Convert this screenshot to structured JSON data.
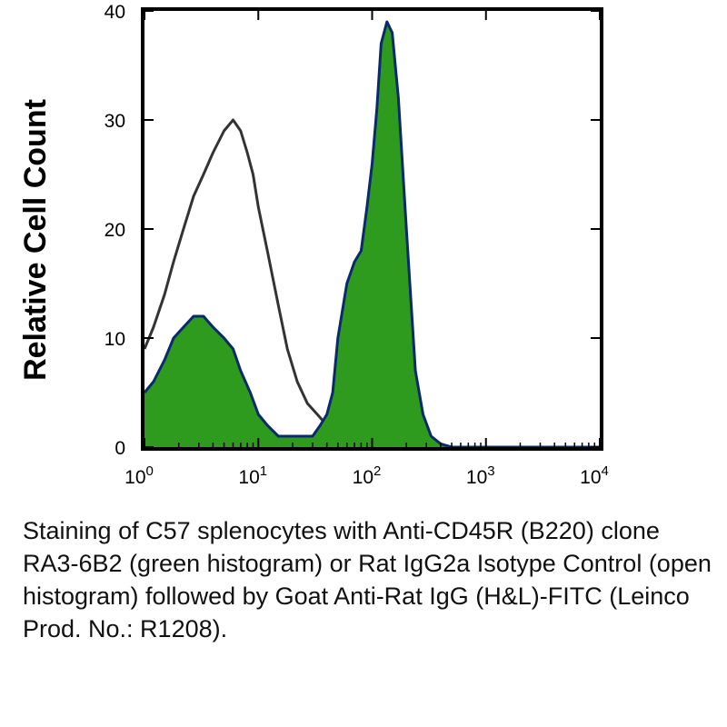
{
  "chart_data": {
    "type": "area",
    "xscale": "log",
    "xlim": [
      1,
      10000
    ],
    "ylim": [
      0,
      40
    ],
    "ylabel": "Relative Cell Count",
    "xlabel": "",
    "yticks": [
      "0",
      "10",
      "20",
      "30",
      "40"
    ],
    "xticks": [
      {
        "base": "10",
        "exp": "0"
      },
      {
        "base": "10",
        "exp": "1"
      },
      {
        "base": "10",
        "exp": "2"
      },
      {
        "base": "10",
        "exp": "3"
      },
      {
        "base": "10",
        "exp": "4"
      }
    ],
    "series": [
      {
        "style": "open histogram",
        "color": "#333333",
        "x": [
          1,
          1.2,
          1.5,
          1.8,
          2.2,
          2.7,
          3.3,
          4,
          5,
          6,
          7,
          8,
          9,
          10,
          12,
          15,
          18,
          22,
          27,
          33,
          40,
          50,
          60,
          80,
          100,
          10000
        ],
        "y": [
          9,
          11,
          14,
          17,
          20,
          23,
          25,
          27,
          29,
          30,
          29,
          27,
          25,
          22,
          18,
          13,
          9,
          6,
          4,
          3,
          2,
          1,
          0.5,
          0.2,
          0,
          0
        ]
      },
      {
        "style": "filled histogram",
        "color": "#2e9b1e",
        "x": [
          1,
          1.2,
          1.5,
          1.8,
          2.2,
          2.7,
          3.3,
          4,
          5,
          6,
          7,
          8.5,
          10,
          12,
          15,
          20,
          25,
          30,
          35,
          40,
          45,
          50,
          60,
          70,
          80,
          90,
          100,
          110,
          120,
          135,
          150,
          170,
          200,
          240,
          280,
          330,
          400,
          500,
          700,
          1000,
          10000
        ],
        "y": [
          5,
          6,
          8,
          10,
          11,
          12,
          12,
          11,
          10,
          9,
          7,
          5,
          3,
          2,
          1,
          1,
          1,
          1,
          2,
          3,
          5,
          10,
          15,
          17,
          18,
          22,
          26,
          31,
          37,
          39,
          38,
          32,
          20,
          7,
          3,
          1,
          0.3,
          0,
          0,
          0,
          0
        ]
      }
    ]
  },
  "caption": "Staining of C57 splenocytes with Anti-CD45R (B220) clone RA3-6B2 (green histogram) or Rat IgG2a Isotype Control (open histogram) followed by Goat Anti-Rat IgG (H&L)-FITC (Leinco Prod. No.: R1208)."
}
